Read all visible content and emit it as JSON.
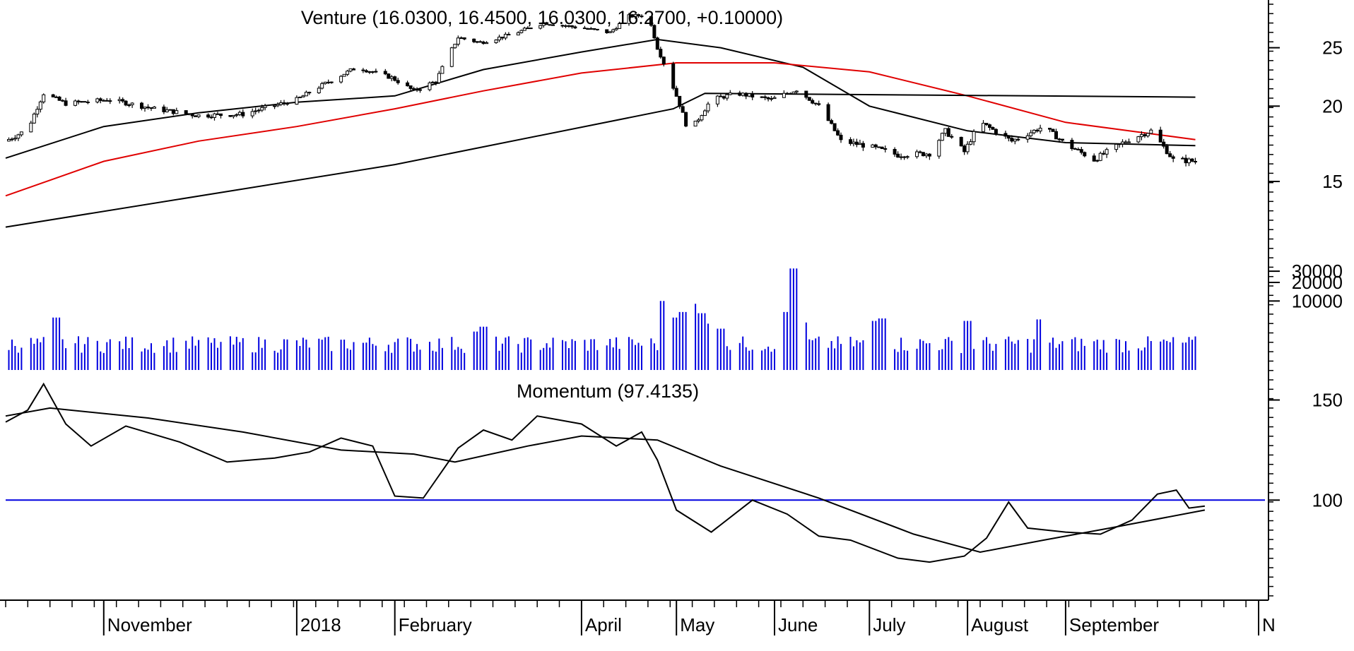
{
  "chart_data": [
    {
      "panel": "price",
      "type": "candlestick",
      "title": "Venture (16.0300, 16.4500, 16.0300, 16.2700, +0.10000)",
      "ylim": [
        11,
        30
      ],
      "y_ticks": [
        15,
        20,
        25
      ],
      "close_path": [
        [
          "2017-10-01",
          17.5
        ],
        [
          "2017-10-08",
          18.3
        ],
        [
          "2017-10-13",
          21.0
        ],
        [
          "2017-10-20",
          20.2
        ],
        [
          "2017-11-03",
          20.5
        ],
        [
          "2017-11-17",
          19.8
        ],
        [
          "2017-12-01",
          19.3
        ],
        [
          "2017-12-15",
          19.4
        ],
        [
          "2018-01-01",
          20.5
        ],
        [
          "2018-01-10",
          21.8
        ],
        [
          "2018-01-20",
          23.2
        ],
        [
          "2018-01-31",
          22.3
        ],
        [
          "2018-02-07",
          21.2
        ],
        [
          "2018-02-14",
          22.0
        ],
        [
          "2018-02-21",
          26.0
        ],
        [
          "2018-02-28",
          25.5
        ],
        [
          "2018-03-10",
          26.3
        ],
        [
          "2018-03-20",
          27.5
        ],
        [
          "2018-03-31",
          27.0
        ],
        [
          "2018-04-10",
          26.5
        ],
        [
          "2018-04-16",
          28.2
        ],
        [
          "2018-04-22",
          28.3
        ],
        [
          "2018-04-25",
          25.0
        ],
        [
          "2018-04-30",
          21.5
        ],
        [
          "2018-05-05",
          18.0
        ],
        [
          "2018-05-12",
          20.5
        ],
        [
          "2018-05-20",
          21.0
        ],
        [
          "2018-05-31",
          20.5
        ],
        [
          "2018-06-08",
          21.3
        ],
        [
          "2018-06-15",
          20.0
        ],
        [
          "2018-06-22",
          17.5
        ],
        [
          "2018-06-30",
          17.2
        ],
        [
          "2018-07-10",
          16.6
        ],
        [
          "2018-07-20",
          16.7
        ],
        [
          "2018-07-25",
          18.2
        ],
        [
          "2018-07-31",
          16.8
        ],
        [
          "2018-08-05",
          18.8
        ],
        [
          "2018-08-15",
          17.5
        ],
        [
          "2018-08-25",
          18.5
        ],
        [
          "2018-09-01",
          17.3
        ],
        [
          "2018-09-10",
          16.3
        ],
        [
          "2018-09-20",
          17.5
        ],
        [
          "2018-09-28",
          18.2
        ],
        [
          "2018-10-05",
          16.3
        ],
        [
          "2018-10-12",
          16.2
        ]
      ],
      "series": [
        {
          "name": "",
          "color": "#000000",
          "values": [
            [
              "2017-10-01",
              16.4
            ],
            [
              "2017-11-01",
              18.5
            ],
            [
              "2017-12-01",
              19.5
            ],
            [
              "2018-01-01",
              20.3
            ],
            [
              "2018-02-01",
              20.8
            ],
            [
              "2018-03-01",
              23.0
            ],
            [
              "2018-04-01",
              24.6
            ],
            [
              "2018-04-25",
              25.8
            ],
            [
              "2018-05-15",
              25.0
            ],
            [
              "2018-06-10",
              23.2
            ],
            [
              "2018-07-01",
              20.0
            ],
            [
              "2018-08-01",
              18.2
            ],
            [
              "2018-09-01",
              17.4
            ],
            [
              "2018-10-12",
              17.2
            ]
          ]
        },
        {
          "name": "",
          "color": "#e00000",
          "values": [
            [
              "2017-10-01",
              14.2
            ],
            [
              "2017-11-01",
              16.2
            ],
            [
              "2017-12-01",
              17.5
            ],
            [
              "2018-01-01",
              18.5
            ],
            [
              "2018-02-01",
              19.8
            ],
            [
              "2018-03-01",
              21.2
            ],
            [
              "2018-04-01",
              22.7
            ],
            [
              "2018-05-01",
              23.6
            ],
            [
              "2018-06-01",
              23.6
            ],
            [
              "2018-07-01",
              22.8
            ],
            [
              "2018-08-01",
              20.8
            ],
            [
              "2018-09-01",
              18.8
            ],
            [
              "2018-10-12",
              17.6
            ]
          ]
        },
        {
          "name": "",
          "color": "#000000",
          "values": [
            [
              "2017-10-01",
              12.6
            ],
            [
              "2018-02-01",
              16.0
            ],
            [
              "2018-04-30",
              19.8
            ],
            [
              "2018-05-10",
              21.0
            ],
            [
              "2018-10-12",
              20.7
            ]
          ]
        }
      ]
    },
    {
      "panel": "volume",
      "type": "bar",
      "color": "#0000e0",
      "y_ticks": [
        10000,
        20000,
        30000
      ],
      "ylim": [
        0,
        35000
      ],
      "baseline": 1000,
      "typical": 1600,
      "spikes": [
        [
          "2017-10-17",
          5200
        ],
        [
          "2018-02-27",
          2800
        ],
        [
          "2018-03-01",
          3500
        ],
        [
          "2018-04-27",
          10000
        ],
        [
          "2018-04-30",
          5200
        ],
        [
          "2018-05-03",
          6500
        ],
        [
          "2018-05-06",
          9000
        ],
        [
          "2018-05-09",
          6200
        ],
        [
          "2018-05-12",
          4000
        ],
        [
          "2018-05-15",
          3200
        ],
        [
          "2018-06-05",
          6500
        ],
        [
          "2018-06-07",
          33000
        ],
        [
          "2018-06-10",
          4200
        ],
        [
          "2018-07-03",
          4500
        ],
        [
          "2018-07-05",
          5000
        ],
        [
          "2018-08-01",
          4500
        ],
        [
          "2018-08-24",
          4800
        ]
      ]
    },
    {
      "panel": "momentum",
      "type": "line",
      "title": "Momentum (97.4135)",
      "ylim": [
        50,
        165
      ],
      "y_ticks": [
        100,
        150
      ],
      "reference_line": 100,
      "reference_color": "#0000e0",
      "series": [
        {
          "name": "Momentum",
          "color": "#000000",
          "values": [
            [
              "2017-10-01",
              139
            ],
            [
              "2017-10-08",
              145
            ],
            [
              "2017-10-13",
              158
            ],
            [
              "2017-10-20",
              138
            ],
            [
              "2017-10-28",
              127
            ],
            [
              "2017-11-08",
              137
            ],
            [
              "2017-11-25",
              129
            ],
            [
              "2017-12-10",
              119
            ],
            [
              "2017-12-25",
              121
            ],
            [
              "2018-01-05",
              124
            ],
            [
              "2018-01-15",
              131
            ],
            [
              "2018-01-25",
              127
            ],
            [
              "2018-02-01",
              102
            ],
            [
              "2018-02-10",
              101
            ],
            [
              "2018-02-21",
              126
            ],
            [
              "2018-03-01",
              135
            ],
            [
              "2018-03-10",
              130
            ],
            [
              "2018-03-18",
              142
            ],
            [
              "2018-04-01",
              138
            ],
            [
              "2018-04-12",
              127
            ],
            [
              "2018-04-20",
              134
            ],
            [
              "2018-04-25",
              120
            ],
            [
              "2018-05-01",
              95
            ],
            [
              "2018-05-12",
              84
            ],
            [
              "2018-05-25",
              100
            ],
            [
              "2018-06-05",
              93
            ],
            [
              "2018-06-15",
              82
            ],
            [
              "2018-06-25",
              80
            ],
            [
              "2018-07-10",
              71
            ],
            [
              "2018-07-20",
              69
            ],
            [
              "2018-07-31",
              72
            ],
            [
              "2018-08-07",
              81
            ],
            [
              "2018-08-14",
              99
            ],
            [
              "2018-08-20",
              86
            ],
            [
              "2018-09-01",
              84
            ],
            [
              "2018-09-12",
              83
            ],
            [
              "2018-09-22",
              90
            ],
            [
              "2018-09-30",
              103
            ],
            [
              "2018-10-06",
              105
            ],
            [
              "2018-10-10",
              96
            ],
            [
              "2018-10-15",
              97
            ]
          ]
        },
        {
          "name": "",
          "color": "#000000",
          "values": [
            [
              "2017-10-01",
              142
            ],
            [
              "2017-10-15",
              146
            ],
            [
              "2017-11-15",
              141
            ],
            [
              "2017-12-15",
              134
            ],
            [
              "2018-01-15",
              125
            ],
            [
              "2018-02-07",
              123
            ],
            [
              "2018-02-20",
              119
            ],
            [
              "2018-03-15",
              127
            ],
            [
              "2018-04-01",
              132
            ],
            [
              "2018-04-25",
              130
            ],
            [
              "2018-05-15",
              117
            ],
            [
              "2018-06-15",
              101
            ],
            [
              "2018-07-15",
              83
            ],
            [
              "2018-08-05",
              74
            ],
            [
              "2018-08-25",
              80
            ],
            [
              "2018-09-15",
              86
            ],
            [
              "2018-10-15",
              95
            ]
          ]
        }
      ]
    }
  ],
  "x_axis": {
    "range": [
      "2017-10-01",
      "2018-11-03"
    ],
    "months": [
      {
        "label": "November",
        "date": "2017-11-01"
      },
      {
        "label": "2018",
        "date": "2018-01-01"
      },
      {
        "label": "February",
        "date": "2018-02-01"
      },
      {
        "label": "April",
        "date": "2018-04-01"
      },
      {
        "label": "May",
        "date": "2018-05-01"
      },
      {
        "label": "June",
        "date": "2018-06-01"
      },
      {
        "label": "July",
        "date": "2018-07-01"
      },
      {
        "label": "August",
        "date": "2018-08-01"
      },
      {
        "label": "September",
        "date": "2018-09-01"
      },
      {
        "label": "N",
        "date": "2018-11-01"
      }
    ]
  }
}
